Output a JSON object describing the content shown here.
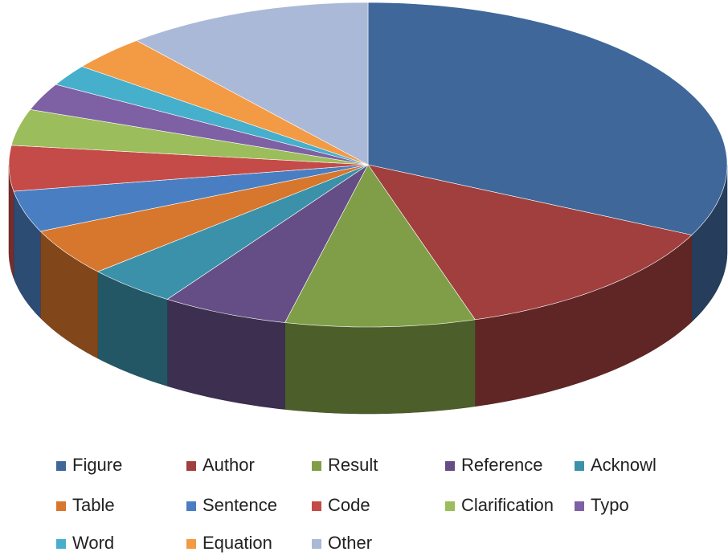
{
  "chart_data": {
    "type": "pie3d",
    "categories": [
      "Figure",
      "Author",
      "Result",
      "Reference",
      "Acknowl",
      "Table",
      "Sentence",
      "Code",
      "Clarification",
      "Typo",
      "Word",
      "Equation",
      "Other"
    ],
    "values": [
      32,
      13,
      8.5,
      5.7,
      4.1,
      4.7,
      4.1,
      4.5,
      3.6,
      2.7,
      2.1,
      3.5,
      11.1
    ],
    "colors": [
      "#3f679a",
      "#a03f3d",
      "#7f9e47",
      "#654e85",
      "#3b91a9",
      "#d7772d",
      "#4a7ec2",
      "#c54b48",
      "#9bbd5b",
      "#7e60a5",
      "#46afcb",
      "#f39a45",
      "#aab9d7"
    ],
    "legend": "bottom"
  }
}
